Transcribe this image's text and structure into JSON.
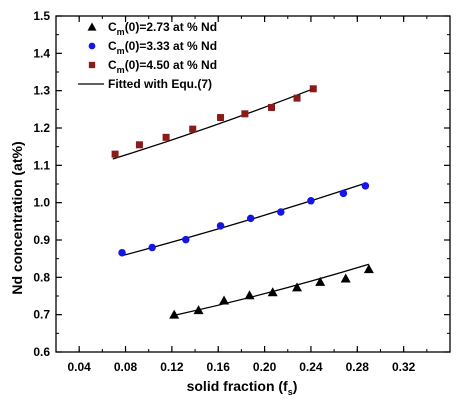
{
  "chart_data": {
    "type": "scatter",
    "xlabel_main": "solid fraction (f",
    "xlabel_sub": "s",
    "xlabel_end": ")",
    "ylabel": "Nd concentration (at%)",
    "xlim": [
      0.02,
      0.36
    ],
    "ylim": [
      0.6,
      1.5
    ],
    "x_ticks": [
      "0.04",
      "0.08",
      "0.12",
      "0.16",
      "0.20",
      "0.24",
      "0.28",
      "0.32"
    ],
    "y_ticks": [
      "0.6",
      "0.7",
      "0.8",
      "0.9",
      "1.0",
      "1.1",
      "1.2",
      "1.3",
      "1.4",
      "1.5"
    ],
    "series": [
      {
        "legend_pre": "C",
        "legend_sub": "m",
        "legend_post": "(0)=2.73 at % Nd",
        "marker": "triangle",
        "color": "#000000",
        "x": [
          0.122,
          0.143,
          0.165,
          0.187,
          0.207,
          0.228,
          0.248,
          0.27,
          0.29
        ],
        "y": [
          0.7,
          0.712,
          0.738,
          0.752,
          0.76,
          0.773,
          0.788,
          0.797,
          0.822
        ]
      },
      {
        "legend_pre": "C",
        "legend_sub": "m",
        "legend_post": "(0)=3.33 at % Nd",
        "marker": "circle",
        "color": "#1515e6",
        "x": [
          0.077,
          0.103,
          0.132,
          0.162,
          0.188,
          0.214,
          0.24,
          0.268,
          0.287
        ],
        "y": [
          0.866,
          0.88,
          0.901,
          0.938,
          0.958,
          0.975,
          1.005,
          1.025,
          1.045
        ]
      },
      {
        "legend_pre": "C",
        "legend_sub": "m",
        "legend_post": "(0)=4.50 at % Nd",
        "marker": "square",
        "color": "#8b1a1a",
        "x": [
          0.071,
          0.092,
          0.115,
          0.138,
          0.162,
          0.183,
          0.206,
          0.228,
          0.242
        ],
        "y": [
          1.13,
          1.155,
          1.175,
          1.197,
          1.228,
          1.238,
          1.255,
          1.28,
          1.305
        ]
      }
    ],
    "fits": [
      {
        "x": [
          0.122,
          0.29
        ],
        "y": [
          0.698,
          0.835
        ]
      },
      {
        "x": [
          0.077,
          0.287
        ],
        "y": [
          0.858,
          1.052
        ]
      },
      {
        "x": [
          0.069,
          0.242
        ],
        "y": [
          1.117,
          1.305
        ]
      }
    ],
    "fit_legend": "Fitted with Equ.(7)"
  }
}
